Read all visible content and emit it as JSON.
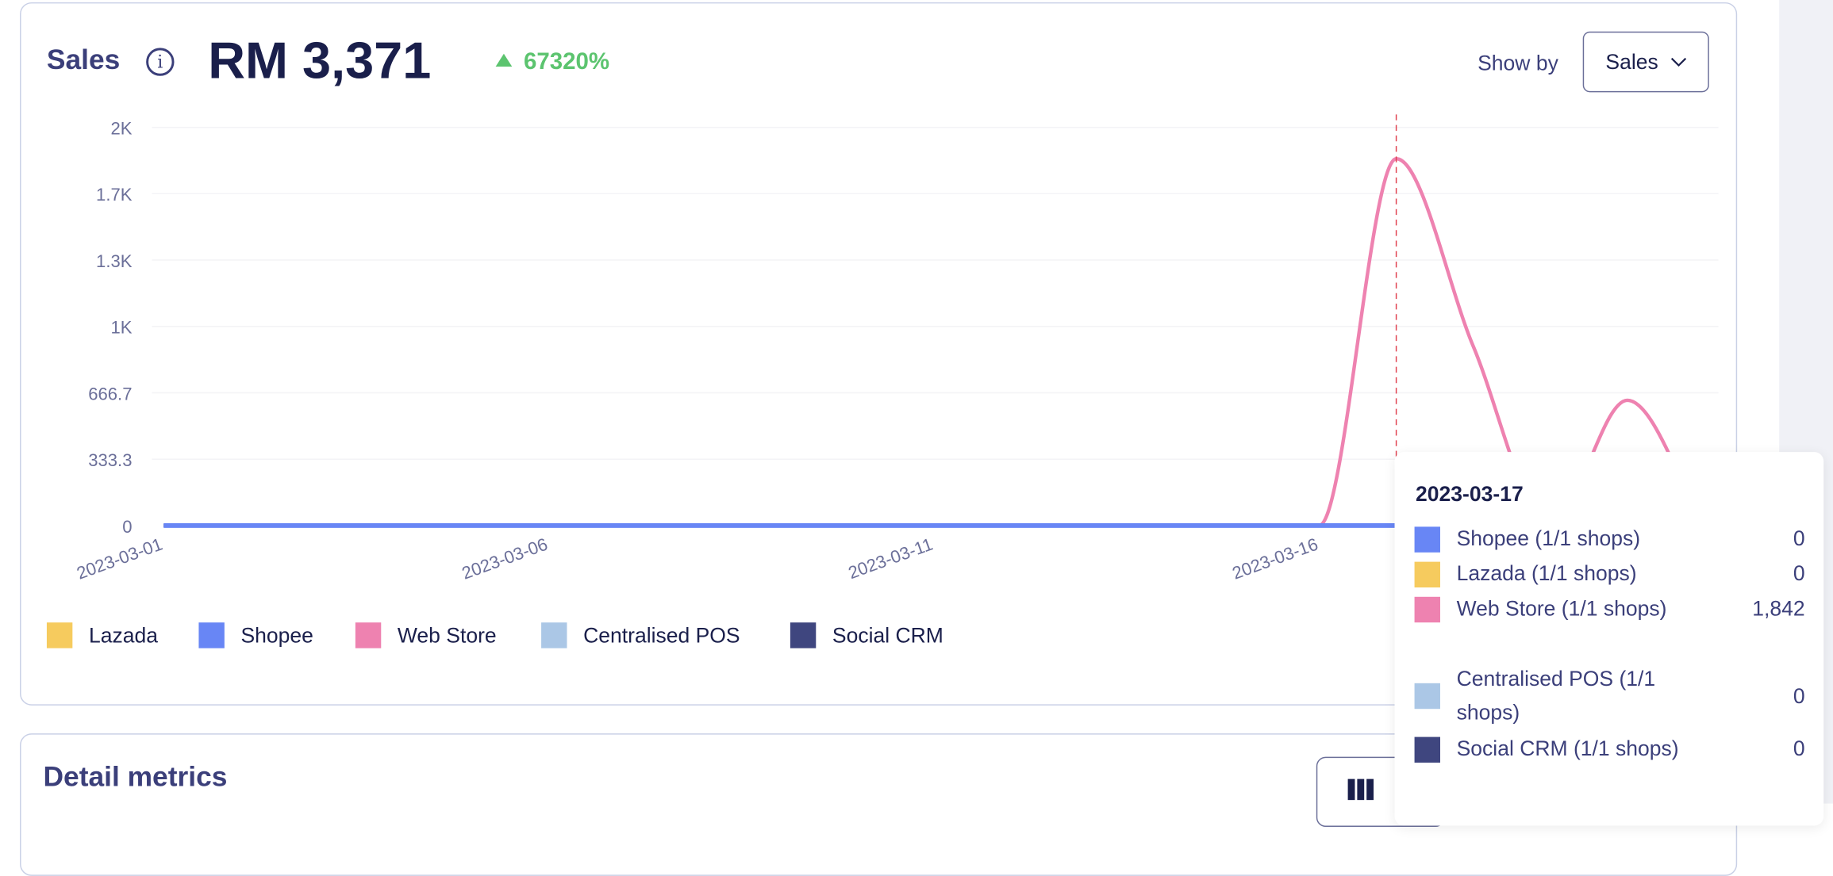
{
  "header": {
    "title": "Sales",
    "info_icon": "info-icon",
    "total": "RM 3,371",
    "change": "67320%",
    "change_direction": "up",
    "show_by_label": "Show by",
    "show_by_value": "Sales"
  },
  "colors": {
    "Lazada": "#f6cb5e",
    "Shopee": "#6886f5",
    "Web Store": "#ee82b0",
    "Centralised POS": "#abc7e6",
    "Social CRM": "#3f467f",
    "hover_line": "#e0404f",
    "up": "#5cc46f"
  },
  "chart_data": {
    "type": "line",
    "x": [
      "2023-03-01",
      "2023-03-02",
      "2023-03-03",
      "2023-03-04",
      "2023-03-05",
      "2023-03-06",
      "2023-03-07",
      "2023-03-08",
      "2023-03-09",
      "2023-03-10",
      "2023-03-11",
      "2023-03-12",
      "2023-03-13",
      "2023-03-14",
      "2023-03-15",
      "2023-03-16",
      "2023-03-17",
      "2023-03-18",
      "2023-03-19",
      "2023-03-20",
      "2023-03-21"
    ],
    "xtick_labels": [
      "2023-03-01",
      "2023-03-06",
      "2023-03-11",
      "2023-03-16"
    ],
    "ytick_labels": [
      "0",
      "333.3",
      "666.7",
      "1K",
      "1.3K",
      "1.7K",
      "2K"
    ],
    "ylim": [
      0,
      2000
    ],
    "grid": true,
    "legend": "bottom-left",
    "series": [
      {
        "name": "Lazada",
        "values": [
          0,
          0,
          0,
          0,
          0,
          0,
          0,
          0,
          0,
          0,
          0,
          0,
          0,
          0,
          0,
          0,
          0,
          0,
          0,
          0,
          0
        ]
      },
      {
        "name": "Web Store",
        "values": [
          0,
          0,
          0,
          0,
          0,
          0,
          0,
          0,
          0,
          0,
          0,
          0,
          0,
          0,
          0,
          0,
          1842,
          900,
          0,
          629,
          0
        ]
      },
      {
        "name": "Centralised POS",
        "values": [
          0,
          0,
          0,
          0,
          0,
          0,
          0,
          0,
          0,
          0,
          0,
          0,
          0,
          0,
          0,
          0,
          0,
          0,
          0,
          0,
          0
        ]
      },
      {
        "name": "Social CRM",
        "values": [
          0,
          0,
          0,
          0,
          0,
          0,
          0,
          0,
          0,
          0,
          0,
          0,
          0,
          0,
          0,
          0,
          0,
          0,
          0,
          0,
          0
        ]
      },
      {
        "name": "Shopee",
        "values": [
          0,
          0,
          0,
          0,
          0,
          0,
          0,
          0,
          0,
          0,
          0,
          0,
          0,
          0,
          0,
          0,
          0,
          0,
          0,
          0,
          0
        ]
      }
    ],
    "hover_index": 16
  },
  "legend": [
    "Lazada",
    "Shopee",
    "Web Store",
    "Centralised POS",
    "Social CRM"
  ],
  "tooltip": {
    "date": "2023-03-17",
    "rows": [
      {
        "series": "Shopee",
        "label": "Shopee (1/1 shops)",
        "value": "0"
      },
      {
        "series": "Lazada",
        "label": "Lazada (1/1 shops)",
        "value": "0"
      },
      {
        "series": "Web Store",
        "label": "Web Store (1/1 shops)",
        "value": "1,842"
      },
      {
        "series": "Centralised POS",
        "label": "Centralised POS (1/1 shops)",
        "value": "0"
      },
      {
        "series": "Social CRM",
        "label": "Social CRM (1/1 shops)",
        "value": "0"
      }
    ]
  },
  "detail": {
    "title": "Detail metrics",
    "columns_icon": "columns-icon"
  }
}
